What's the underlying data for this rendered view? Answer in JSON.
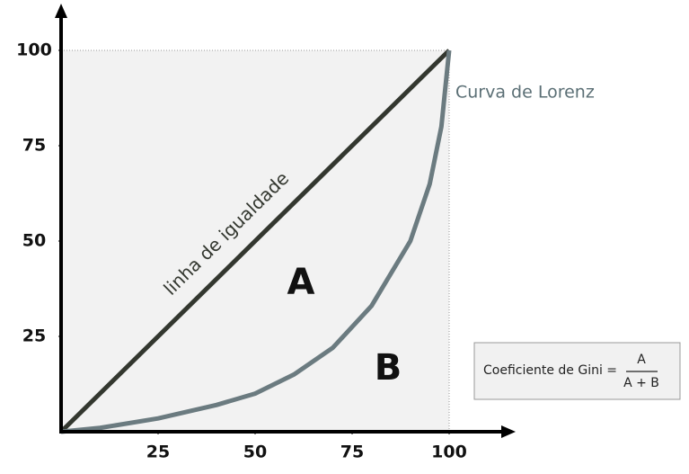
{
  "chart_data": {
    "type": "line",
    "xlim": [
      0,
      100
    ],
    "ylim": [
      0,
      100
    ],
    "xticks": [
      25,
      50,
      75,
      100
    ],
    "yticks": [
      25,
      50,
      75,
      100
    ],
    "series": [
      {
        "name": "linha de igualdade",
        "color": "#33372f",
        "x": [
          0,
          100
        ],
        "values": [
          0,
          100
        ]
      },
      {
        "name": "Curva de Lorenz",
        "color": "#6b7b80",
        "x": [
          0,
          10,
          25,
          40,
          50,
          60,
          70,
          80,
          90,
          95,
          98,
          100
        ],
        "values": [
          0,
          1,
          3.5,
          7,
          10,
          15,
          22,
          33,
          50,
          65,
          80,
          100
        ]
      }
    ],
    "annotations": [
      "A",
      "B"
    ],
    "formula": {
      "label": "Coeficiente de Gini =",
      "numerator": "A",
      "denominator": "A + B"
    }
  }
}
